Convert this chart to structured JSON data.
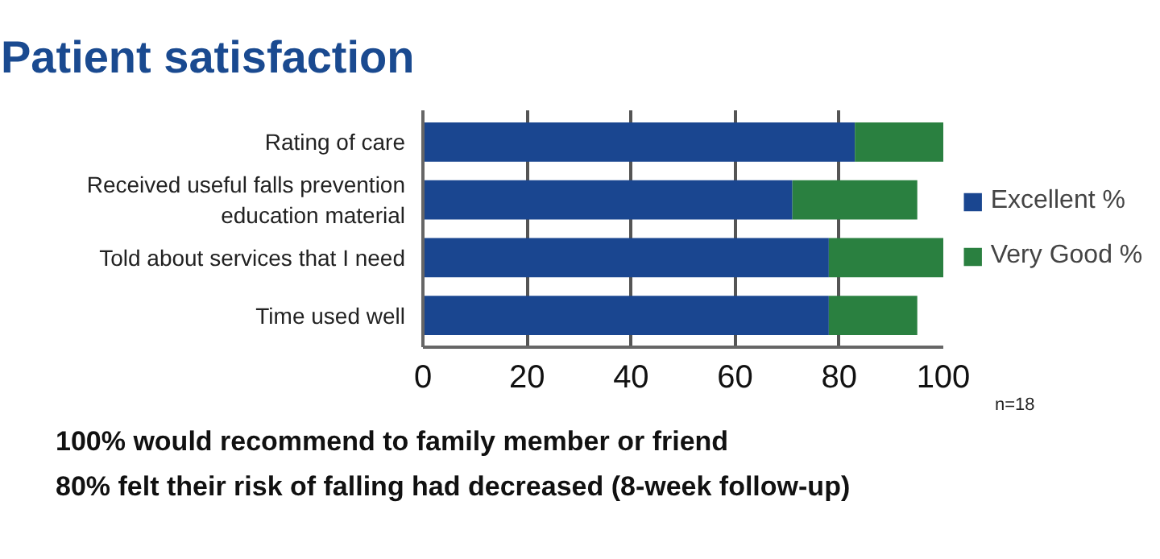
{
  "chart_data": {
    "type": "bar",
    "orientation": "horizontal",
    "stacked": true,
    "title": "Patient satisfaction",
    "categories": [
      "Rating of care",
      "Received useful falls prevention education material",
      "Told about services that I need",
      "Time used well"
    ],
    "series": [
      {
        "name": "Excellent %",
        "color": "#1a4690",
        "values": [
          83,
          71,
          78,
          78
        ]
      },
      {
        "name": "Very Good %",
        "color": "#2a8040",
        "values": [
          17,
          24,
          22,
          17
        ]
      }
    ],
    "xlim": [
      0,
      100
    ],
    "xticks": [
      0,
      20,
      40,
      60,
      80,
      100
    ],
    "grid": "x",
    "legend": "right",
    "annotations": [
      "n=18",
      "100% would recommend to family member or friend",
      "80% felt their risk of falling had decreased (8-week follow-up)"
    ]
  }
}
